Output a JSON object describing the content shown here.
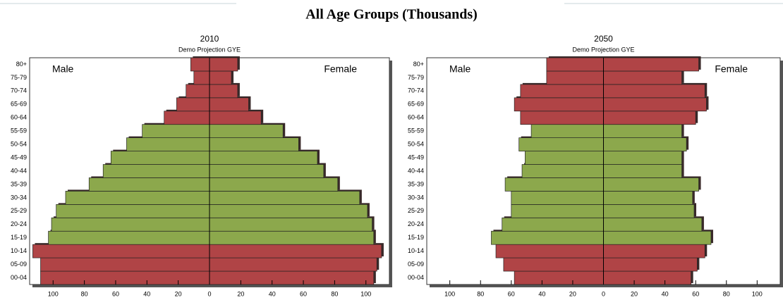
{
  "title": "All Age Groups (Thousands)",
  "chart_data": [
    {
      "type": "pyramid",
      "title": "2010",
      "subtitle": "Demo Projection GYE",
      "categories": [
        "00-04",
        "05-09",
        "10-14",
        "15-19",
        "20-24",
        "25-29",
        "30-34",
        "35-39",
        "40-44",
        "45-49",
        "50-54",
        "55-59",
        "60-64",
        "65-69",
        "70-74",
        "75-79",
        "80+"
      ],
      "colors": [
        "#b04446",
        "#b04446",
        "#b04446",
        "#8ca84c",
        "#8ca84c",
        "#8ca84c",
        "#8ca84c",
        "#8ca84c",
        "#8ca84c",
        "#8ca84c",
        "#8ca84c",
        "#8ca84c",
        "#b04446",
        "#b04446",
        "#b04446",
        "#b04446",
        "#b04446"
      ],
      "series": [
        {
          "name": "Male",
          "values": [
            -108,
            -108,
            -113,
            -103,
            -101,
            -98,
            -92,
            -77,
            -68,
            -63,
            -53,
            -43,
            -29,
            -21,
            -15,
            -10,
            -12
          ]
        },
        {
          "name": "Female",
          "values": [
            105,
            107,
            110,
            105,
            104,
            101,
            96,
            82,
            73,
            69,
            57,
            47,
            33,
            25,
            18,
            14,
            18
          ]
        }
      ],
      "xlim": [
        -115,
        115
      ],
      "xticks": [
        {
          "value": -100,
          "label": "100"
        },
        {
          "value": -80,
          "label": "80"
        },
        {
          "value": -60,
          "label": "60"
        },
        {
          "value": -40,
          "label": "40"
        },
        {
          "value": -20,
          "label": "20"
        },
        0,
        20,
        40,
        60,
        80,
        100
      ]
    },
    {
      "type": "pyramid",
      "title": "2050",
      "subtitle": "Demo Projection GYE",
      "categories": [
        "00-04",
        "05-09",
        "10-14",
        "15-19",
        "20-24",
        "25-29",
        "30-34",
        "35-39",
        "40-44",
        "45-49",
        "50-54",
        "55-59",
        "60-64",
        "65-69",
        "70-74",
        "75-79",
        "80+"
      ],
      "colors": [
        "#b04446",
        "#b04446",
        "#b04446",
        "#8ca84c",
        "#8ca84c",
        "#8ca84c",
        "#8ca84c",
        "#8ca84c",
        "#8ca84c",
        "#8ca84c",
        "#8ca84c",
        "#8ca84c",
        "#b04446",
        "#b04446",
        "#b04446",
        "#b04446",
        "#b04446"
      ],
      "series": [
        {
          "name": "Male",
          "values": [
            -58,
            -65,
            -70,
            -73,
            -66,
            -60,
            -60,
            -64,
            -53,
            -51,
            -55,
            -47,
            -54,
            -58,
            -54,
            -37,
            -37
          ]
        },
        {
          "name": "Female",
          "values": [
            57,
            61,
            66,
            70,
            64,
            59,
            58,
            62,
            51,
            51,
            54,
            51,
            60,
            67,
            66,
            51,
            62
          ]
        }
      ],
      "xlim": [
        -115,
        115
      ],
      "xticks": [
        {
          "value": -100,
          "label": "100"
        },
        {
          "value": -80,
          "label": "80"
        },
        {
          "value": -60,
          "label": "60"
        },
        {
          "value": -40,
          "label": "40"
        },
        {
          "value": -20,
          "label": "20"
        },
        0,
        20,
        40,
        60,
        80,
        100
      ]
    }
  ]
}
